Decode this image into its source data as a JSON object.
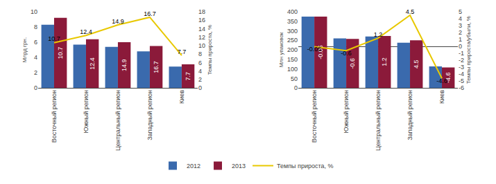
{
  "chart_data": [
    {
      "type": "bar",
      "categories": [
        "Восточный регион",
        "Южный регион",
        "Центральный регион",
        "Западный регион",
        "Киев"
      ],
      "series": [
        {
          "name": "2012",
          "color": "#3A6AAD",
          "values": [
            8.3,
            5.7,
            5.4,
            4.8,
            2.8
          ]
        },
        {
          "name": "2013",
          "color": "#8B1A3A",
          "values": [
            9.2,
            6.4,
            6.0,
            5.5,
            3.1
          ]
        },
        {
          "name": "Темпы прироста, %",
          "type": "line",
          "axis": "y2",
          "color": "#E8C800",
          "data_labels": true,
          "values": [
            10.7,
            12.4,
            14.9,
            16.7,
            7.7
          ]
        }
      ],
      "ylabel": "Млрд грн.",
      "y2label": "Темпы прироста, %",
      "ylim": [
        0,
        10
      ],
      "yticks": [
        0,
        2,
        4,
        6,
        8,
        10
      ],
      "y2lim": [
        0,
        18
      ],
      "y2ticks": [
        0,
        2,
        4,
        6,
        8,
        10,
        12,
        14,
        16,
        18
      ],
      "grid": false,
      "legend": "bottom"
    },
    {
      "type": "bar",
      "categories": [
        "Восточный регион",
        "Южный регион",
        "Центральный регион",
        "Западный регион",
        "Киев"
      ],
      "series": [
        {
          "name": "2012",
          "color": "#3A6AAD",
          "values": [
            375,
            260,
            270,
            238,
            113
          ]
        },
        {
          "name": "2013",
          "color": "#8B1A3A",
          "values": [
            375,
            258,
            273,
            250,
            108
          ]
        },
        {
          "name": "Темпы прироста, %",
          "type": "line",
          "axis": "y2",
          "color": "#E8C800",
          "data_labels": true,
          "values": [
            -0.05,
            -0.6,
            1.2,
            4.5,
            -4.6
          ]
        }
      ],
      "ylabel": "Млн упаковок",
      "y2label": "Темпы прироста/убыли, %",
      "ylim": [
        0,
        400
      ],
      "yticks": [
        0,
        50,
        100,
        150,
        200,
        250,
        300,
        350,
        400
      ],
      "y2lim": [
        -6,
        5
      ],
      "y2ticks": [
        -6,
        -5,
        -4,
        -3,
        -2,
        -1,
        0,
        1,
        2,
        3,
        4,
        5
      ],
      "grid": false,
      "legend": "bottom"
    }
  ]
}
